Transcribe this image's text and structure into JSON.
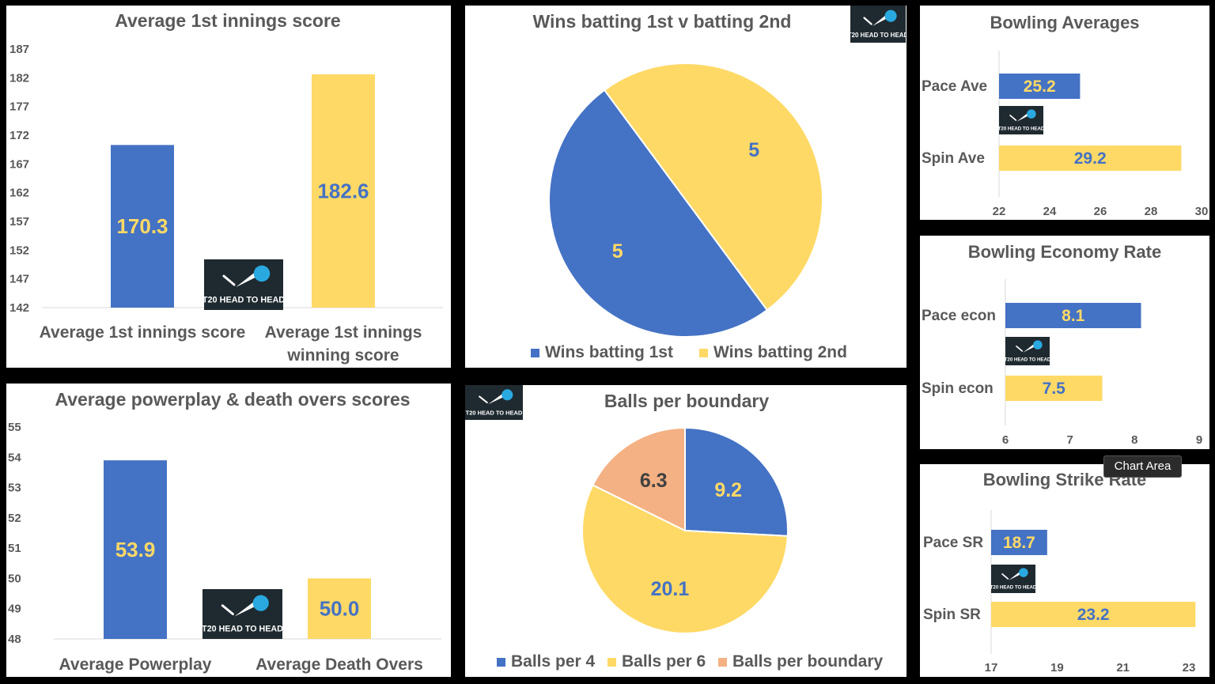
{
  "colors": {
    "blue": "#4472C4",
    "yellow": "#FFD966",
    "peach": "#F4B183",
    "text": "#595959",
    "dark_label": "#404040",
    "logo_bg": "#1f2a30",
    "logo_ball": "#29a9e0"
  },
  "logo_text": "T20 HEAD TO HEAD",
  "tooltip": "Chart Area",
  "chart_data": [
    {
      "id": "first_innings",
      "type": "bar",
      "title": "Average 1st innings score",
      "categories": [
        "Average 1st innings score",
        "Average 1st innings winning score"
      ],
      "values": [
        170.3,
        182.6
      ],
      "colors": [
        "blue",
        "yellow"
      ],
      "label_colors": [
        "yellow",
        "blue"
      ],
      "ylim": [
        142,
        187
      ],
      "yticks": [
        142,
        147,
        152,
        157,
        162,
        167,
        172,
        177,
        182,
        187
      ],
      "grid": false
    },
    {
      "id": "wins_pie",
      "type": "pie",
      "title": "Wins batting 1st v batting 2nd",
      "labels": [
        "Wins batting 1st",
        "Wins batting 2nd"
      ],
      "values": [
        5,
        5
      ],
      "colors": [
        "blue",
        "yellow"
      ],
      "label_colors": [
        "yellow",
        "blue"
      ],
      "legend": "bottom"
    },
    {
      "id": "bowling_avg",
      "type": "bar",
      "orientation": "horizontal",
      "title": "Bowling Averages",
      "categories": [
        "Pace Ave",
        "Spin Ave"
      ],
      "values": [
        25.2,
        29.2
      ],
      "colors": [
        "blue",
        "yellow"
      ],
      "label_colors": [
        "yellow",
        "blue"
      ],
      "xlim": [
        22,
        30
      ],
      "xticks": [
        22,
        24,
        26,
        28,
        30
      ]
    },
    {
      "id": "bowling_econ",
      "type": "bar",
      "orientation": "horizontal",
      "title": "Bowling Economy Rate",
      "categories": [
        "Pace econ",
        "Spin econ"
      ],
      "values": [
        8.1,
        7.5
      ],
      "colors": [
        "blue",
        "yellow"
      ],
      "label_colors": [
        "yellow",
        "blue"
      ],
      "xlim": [
        6,
        9
      ],
      "xticks": [
        6,
        7,
        8,
        9
      ]
    },
    {
      "id": "powerplay",
      "type": "bar",
      "title": "Average powerplay & death overs scores",
      "categories": [
        "Average Powerplay",
        "Average Death Overs"
      ],
      "values": [
        53.9,
        50.0
      ],
      "value_labels": [
        "53.9",
        "50.0"
      ],
      "colors": [
        "blue",
        "yellow"
      ],
      "label_colors": [
        "yellow",
        "blue"
      ],
      "ylim": [
        48,
        55
      ],
      "yticks": [
        48,
        49,
        50,
        51,
        52,
        53,
        54,
        55
      ]
    },
    {
      "id": "balls_boundary",
      "type": "pie",
      "title": "Balls per boundary",
      "labels": [
        "Balls per 4",
        "Balls per 6",
        "Balls per boundary"
      ],
      "values": [
        9.2,
        20.1,
        6.3
      ],
      "colors": [
        "blue",
        "yellow",
        "peach"
      ],
      "label_colors": [
        "yellow",
        "blue",
        "dark_label"
      ],
      "legend": "bottom"
    },
    {
      "id": "strike_rate",
      "type": "bar",
      "orientation": "horizontal",
      "title": "Bowling Strike Rate",
      "categories": [
        "Pace SR",
        "Spin SR"
      ],
      "values": [
        18.7,
        23.2
      ],
      "colors": [
        "blue",
        "yellow"
      ],
      "label_colors": [
        "yellow",
        "blue"
      ],
      "xlim": [
        17,
        23
      ],
      "xticks": [
        17,
        19,
        21,
        23
      ]
    }
  ]
}
